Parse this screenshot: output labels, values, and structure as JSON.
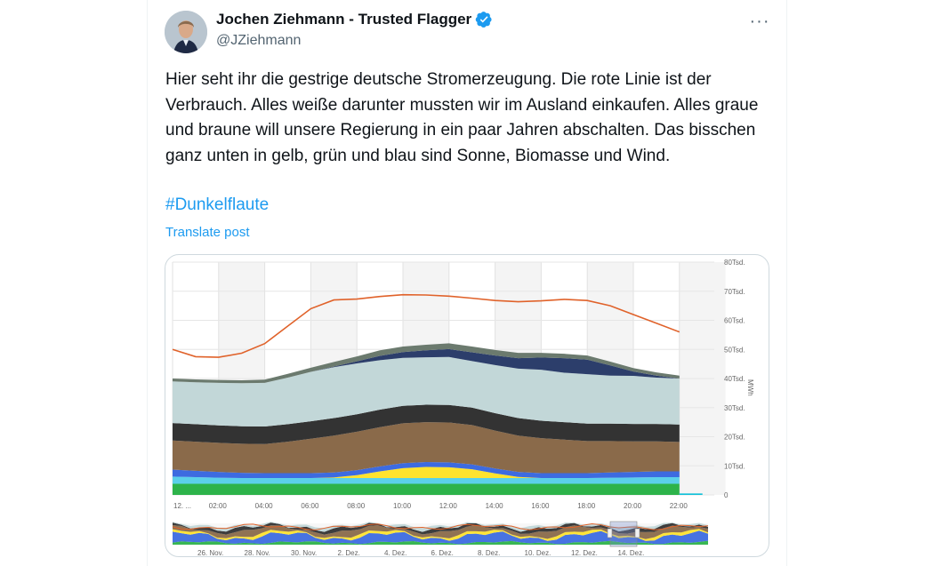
{
  "post": {
    "author_name": "Jochen Ziehmann - Trusted Flagger",
    "handle": "@JZiehmann",
    "body": "Hier seht ihr die gestrige deutsche Stromerzeugung. Die rote Linie ist der Verbrauch. Alles weiße darunter mussten wir im Ausland einkaufen. Alles graue und braune will unsere Regierung in ein paar Jahren abschalten. Das bisschen ganz unten in gelb, grün und blau sind Sonne, Biomasse und Wind.",
    "hashtag": "#Dunkelflaute",
    "translate_label": "Translate post",
    "more_label": "···",
    "verified_color": "#1d9bf0"
  },
  "chart_data": {
    "type": "area",
    "ylabel": "MWh",
    "ylim": [
      0,
      80000
    ],
    "x_tick_labels": [
      "12. ...",
      "02:00",
      "04:00",
      "06:00",
      "08:00",
      "10:00",
      "12:00",
      "14:00",
      "16:00",
      "18:00",
      "20:00",
      "22:00"
    ],
    "y_tick_labels": [
      "0",
      "10Tsd.",
      "20Tsd.",
      "30Tsd.",
      "40Tsd.",
      "50Tsd.",
      "60Tsd.",
      "70Tsd.",
      "80Tsd."
    ],
    "x_hours": [
      0,
      1,
      2,
      3,
      4,
      5,
      6,
      7,
      8,
      9,
      10,
      11,
      12,
      13,
      14,
      15,
      16,
      17,
      18,
      19,
      20,
      21,
      22
    ],
    "consumption_line": {
      "color": "#e0622a",
      "values": [
        50000,
        47500,
        47300,
        48700,
        52000,
        58000,
        64000,
        67000,
        67300,
        68200,
        68800,
        68700,
        68300,
        67600,
        66800,
        66400,
        66700,
        67200,
        66800,
        65000,
        62000,
        59000,
        56000
      ]
    },
    "stacked_series": [
      {
        "color": "#2db34a",
        "values": [
          3800,
          3800,
          3800,
          3800,
          3800,
          3800,
          3800,
          3800,
          3800,
          3800,
          3800,
          3800,
          3800,
          3800,
          3800,
          3800,
          3800,
          3800,
          3800,
          3800,
          3800,
          3800,
          3800
        ]
      },
      {
        "color": "#5bd0ea",
        "values": [
          2500,
          2300,
          2100,
          2000,
          2000,
          2000,
          2000,
          2000,
          2000,
          2000,
          2000,
          2000,
          2000,
          2000,
          2000,
          2000,
          2000,
          2000,
          2000,
          2100,
          2200,
          2300,
          2300
        ]
      },
      {
        "color": "#ffe32e",
        "values": [
          0,
          0,
          0,
          0,
          0,
          0,
          0,
          200,
          1000,
          2300,
          3400,
          3800,
          3700,
          3000,
          1600,
          400,
          0,
          0,
          0,
          0,
          0,
          0,
          0
        ]
      },
      {
        "color": "#3d6be0",
        "values": [
          2400,
          2200,
          2000,
          1800,
          1700,
          1700,
          1700,
          1700,
          1700,
          1700,
          1700,
          1700,
          1700,
          1700,
          1700,
          1700,
          1700,
          1700,
          1700,
          1800,
          1900,
          2000,
          2000
        ]
      },
      {
        "color": "#8a6a4a",
        "values": [
          10000,
          10000,
          10000,
          10000,
          10000,
          10800,
          11800,
          12700,
          13200,
          13500,
          13700,
          13700,
          13700,
          13500,
          13000,
          12500,
          12000,
          11500,
          11000,
          10800,
          10500,
          10300,
          10100
        ]
      },
      {
        "color": "#333333",
        "values": [
          6000,
          6000,
          6000,
          6000,
          6000,
          6000,
          6000,
          6000,
          6000,
          6000,
          6000,
          6000,
          6000,
          6000,
          6000,
          6000,
          6000,
          6000,
          6000,
          6000,
          6000,
          6000,
          6000
        ]
      },
      {
        "color": "#c2d7d8",
        "values": [
          14300,
          14400,
          14600,
          14800,
          15000,
          16000,
          17000,
          17500,
          17500,
          17000,
          16500,
          16300,
          16500,
          16000,
          16500,
          17000,
          17500,
          17000,
          17000,
          16500,
          16500,
          15900,
          15800
        ]
      },
      {
        "color": "#2c3e6b",
        "values": [
          0,
          0,
          0,
          0,
          0,
          0,
          0,
          200,
          700,
          1500,
          2000,
          2400,
          2700,
          3000,
          3300,
          3600,
          4200,
          5000,
          5000,
          3500,
          1500,
          700,
          0
        ]
      },
      {
        "color": "#6b7a6e",
        "values": [
          1000,
          1000,
          1000,
          1000,
          1100,
          1300,
          1400,
          1600,
          1700,
          1900,
          1900,
          1900,
          2000,
          2000,
          1900,
          1800,
          1600,
          1500,
          1400,
          1300,
          1200,
          1100,
          1000
        ]
      }
    ],
    "tail_series": {
      "color": "#10c0d8",
      "value": 500
    },
    "navigator": {
      "date_labels": [
        "26. Nov.",
        "28. Nov.",
        "30. Nov.",
        "2. Dez.",
        "4. Dez.",
        "6. Dez.",
        "8. Dez.",
        "10. Dez.",
        "12. Dez.",
        "14. Dez."
      ]
    }
  }
}
